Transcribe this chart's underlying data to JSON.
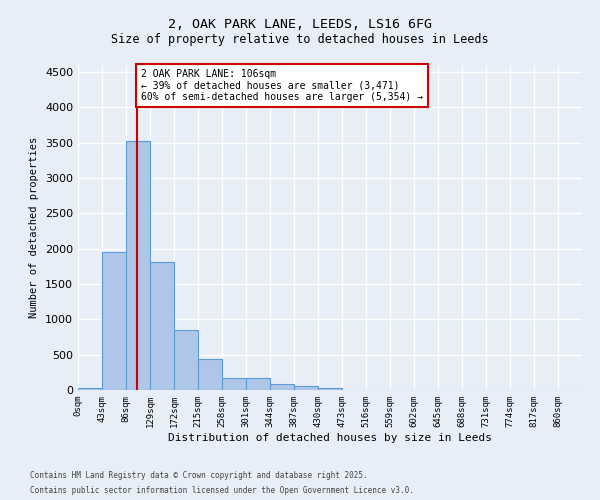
{
  "title_line1": "2, OAK PARK LANE, LEEDS, LS16 6FG",
  "title_line2": "Size of property relative to detached houses in Leeds",
  "xlabel": "Distribution of detached houses by size in Leeds",
  "ylabel": "Number of detached properties",
  "bar_color": "#aec6e8",
  "bar_edge_color": "#5b9bd5",
  "background_color": "#e8eef8",
  "grid_color": "#ffffff",
  "fig_background": "#e8eef8",
  "vline_color": "#cc0000",
  "vline_x": 2.47,
  "annotation_text": "2 OAK PARK LANE: 106sqm\n← 39% of detached houses are smaller (3,471)\n60% of semi-detached houses are larger (5,354) →",
  "annotation_box_color": "#ffffff",
  "annotation_box_edge": "#cc0000",
  "bin_labels": [
    "0sqm",
    "43sqm",
    "86sqm",
    "129sqm",
    "172sqm",
    "215sqm",
    "258sqm",
    "301sqm",
    "344sqm",
    "387sqm",
    "430sqm",
    "473sqm",
    "516sqm",
    "559sqm",
    "602sqm",
    "645sqm",
    "688sqm",
    "731sqm",
    "774sqm",
    "817sqm",
    "860sqm"
  ],
  "bar_heights": [
    30,
    1950,
    3520,
    1810,
    855,
    445,
    165,
    165,
    90,
    55,
    30,
    0,
    0,
    0,
    0,
    0,
    0,
    0,
    0,
    0,
    0
  ],
  "ylim": [
    0,
    4600
  ],
  "yticks": [
    0,
    500,
    1000,
    1500,
    2000,
    2500,
    3000,
    3500,
    4000,
    4500
  ],
  "footnote1": "Contains HM Land Registry data © Crown copyright and database right 2025.",
  "footnote2": "Contains public sector information licensed under the Open Government Licence v3.0."
}
